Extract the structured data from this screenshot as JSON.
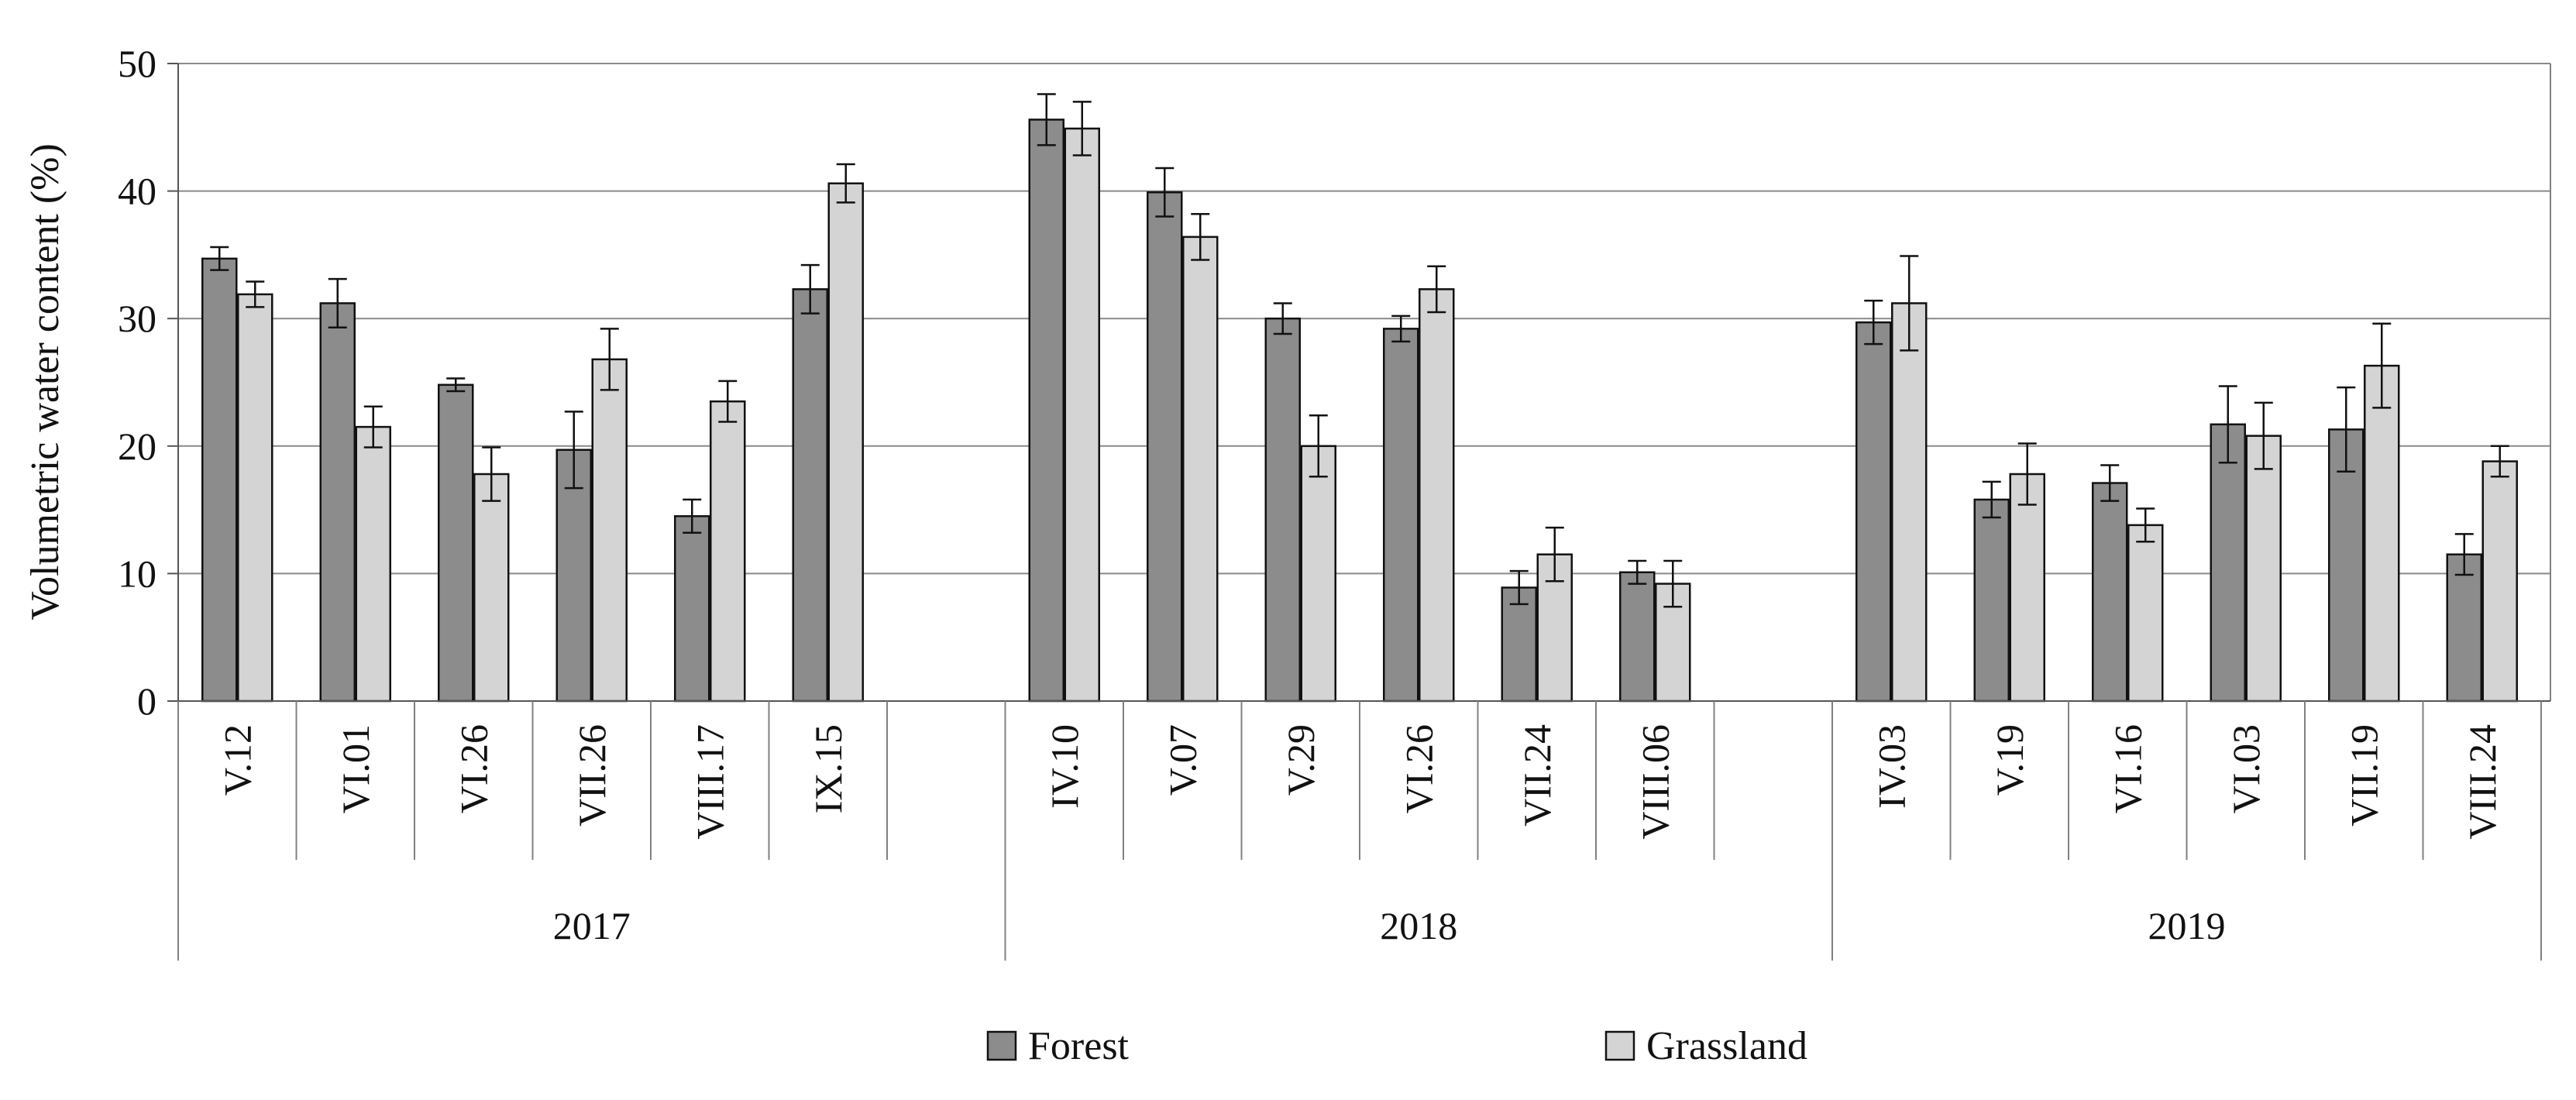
{
  "chart_data": {
    "type": "bar",
    "title": "",
    "xlabel": "",
    "ylabel": "Volumetric water content (%)",
    "ylim": [
      0,
      50
    ],
    "yticks": [
      0,
      10,
      20,
      30,
      40,
      50
    ],
    "grid": true,
    "legend_position": "bottom",
    "colors": {
      "Forest": "#8c8c8c",
      "Grassland": "#d4d4d4",
      "grid": "#8a8a8a",
      "axis": "#808080"
    },
    "groups": [
      {
        "label": "2017",
        "categories": [
          "V.12",
          "VI.01",
          "VI.26",
          "VII.26",
          "VIII.17",
          "IX.15"
        ],
        "slots": 7,
        "series": [
          {
            "name": "Forest",
            "values": [
              34.7,
              31.2,
              24.8,
              19.7,
              14.5,
              32.3
            ],
            "errors": [
              0.9,
              1.9,
              0.5,
              3.0,
              1.3,
              1.9
            ]
          },
          {
            "name": "Grassland",
            "values": [
              31.9,
              21.5,
              17.8,
              26.8,
              23.5,
              40.6
            ],
            "errors": [
              1.0,
              1.6,
              2.1,
              2.4,
              1.6,
              1.5
            ]
          }
        ]
      },
      {
        "label": "2018",
        "categories": [
          "IV.10",
          "V.07",
          "V.29",
          "VI.26",
          "VII.24",
          "VIII.06"
        ],
        "slots": 7,
        "series": [
          {
            "name": "Forest",
            "values": [
              45.6,
              39.9,
              30.0,
              29.2,
              8.9,
              10.1
            ],
            "errors": [
              2.0,
              1.9,
              1.2,
              1.0,
              1.3,
              0.9
            ]
          },
          {
            "name": "Grassland",
            "values": [
              44.9,
              36.4,
              20.0,
              32.3,
              11.5,
              9.2
            ],
            "errors": [
              2.1,
              1.8,
              2.4,
              1.8,
              2.1,
              1.8
            ]
          }
        ]
      },
      {
        "label": "2019",
        "categories": [
          "IV.03",
          "V.19",
          "VI.16",
          "VI.03",
          "VII.19",
          "VIII.24"
        ],
        "slots": 6,
        "series": [
          {
            "name": "Forest",
            "values": [
              29.7,
              15.8,
              17.1,
              21.7,
              21.3,
              11.5
            ],
            "errors": [
              1.7,
              1.4,
              1.4,
              3.0,
              3.3,
              1.6
            ]
          },
          {
            "name": "Grassland",
            "values": [
              31.2,
              17.8,
              13.8,
              20.8,
              26.3,
              18.8
            ],
            "errors": [
              3.7,
              2.4,
              1.3,
              2.6,
              3.3,
              1.2
            ]
          }
        ]
      }
    ],
    "legend": [
      "Forest",
      "Grassland"
    ]
  }
}
